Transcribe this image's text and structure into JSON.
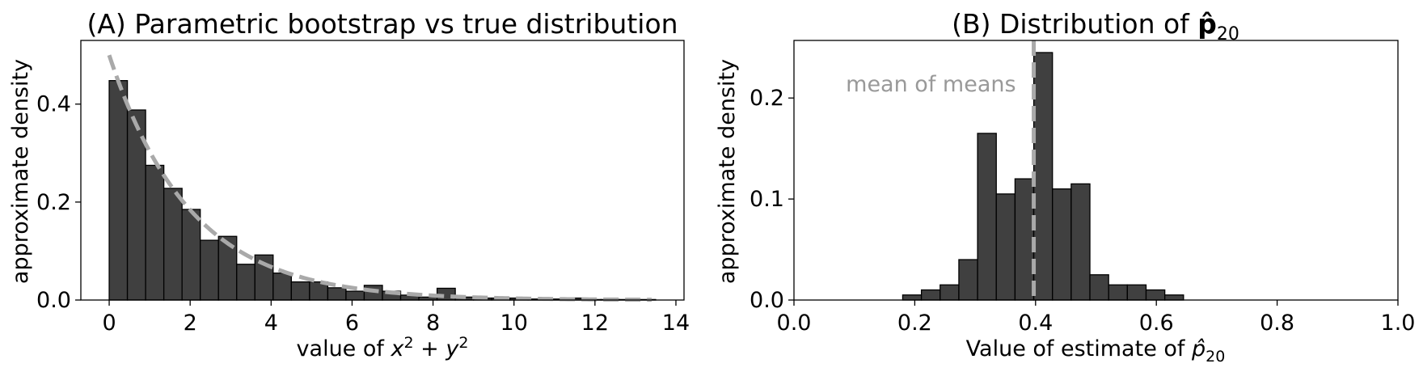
{
  "chart_data": [
    {
      "type": "bar",
      "title": "(A) Parametric bootstrap vs true distribution",
      "xlabel_prefix": "value of ",
      "xlabel_math": [
        "x",
        "2",
        " + ",
        "y",
        "2"
      ],
      "ylabel": "approximate density",
      "xlim": [
        -0.7,
        14.2
      ],
      "ylim": [
        0,
        0.53
      ],
      "xticks": [
        0,
        2,
        4,
        6,
        8,
        10,
        12,
        14
      ],
      "xtick_labels": [
        "0",
        "2",
        "4",
        "6",
        "8",
        "10",
        "12",
        "14"
      ],
      "yticks": [
        0.0,
        0.2,
        0.4
      ],
      "ytick_labels": [
        "0.0",
        "0.2",
        "0.4"
      ],
      "bin_start": 0,
      "bin_width": 0.45,
      "values": [
        0.448,
        0.388,
        0.275,
        0.228,
        0.185,
        0.122,
        0.13,
        0.073,
        0.092,
        0.055,
        0.037,
        0.037,
        0.025,
        0.018,
        0.03,
        0.018,
        0.01,
        0.006,
        0.024,
        0.006,
        0.004,
        0.004,
        0.004,
        0.002,
        0.002,
        0.004,
        0.001,
        0.001,
        0.001,
        0.001
      ],
      "true_density": {
        "formula": "0.5*exp(-x/2)",
        "x_range": [
          0,
          13.4
        ],
        "style": "dashed"
      },
      "grid": false,
      "colors": {
        "bars": "#404040",
        "edge": "#000000",
        "curve": "#a9a9a9"
      }
    },
    {
      "type": "bar",
      "title_prefix": "(B) Distribution of ",
      "title_math": [
        "p̂",
        "20"
      ],
      "xlabel_prefix": "Value of estimate of ",
      "xlabel_math": [
        "p̂",
        "20"
      ],
      "ylabel": "approximate density",
      "xlim": [
        0.0,
        1.0
      ],
      "ylim": [
        0,
        0.257
      ],
      "xticks": [
        0.0,
        0.2,
        0.4,
        0.6,
        0.8,
        1.0
      ],
      "xtick_labels": [
        "0.0",
        "0.2",
        "0.4",
        "0.6",
        "0.8",
        "1.0"
      ],
      "yticks": [
        0.0,
        0.1,
        0.2
      ],
      "ytick_labels": [
        "0.0",
        "0.1",
        "0.2"
      ],
      "bin_start": 0.18,
      "bin_width": 0.031,
      "values": [
        0.005,
        0.01,
        0.015,
        0.04,
        0.165,
        0.105,
        0.12,
        0.245,
        0.11,
        0.115,
        0.025,
        0.015,
        0.015,
        0.01,
        0.005
      ],
      "mean_line": {
        "x": 0.397,
        "label": "mean of means",
        "style": "dashed"
      },
      "grid": false,
      "colors": {
        "bars": "#404040",
        "edge": "#000000",
        "mean_line": "#a9a9a9",
        "mean_label": "#999999"
      }
    }
  ]
}
